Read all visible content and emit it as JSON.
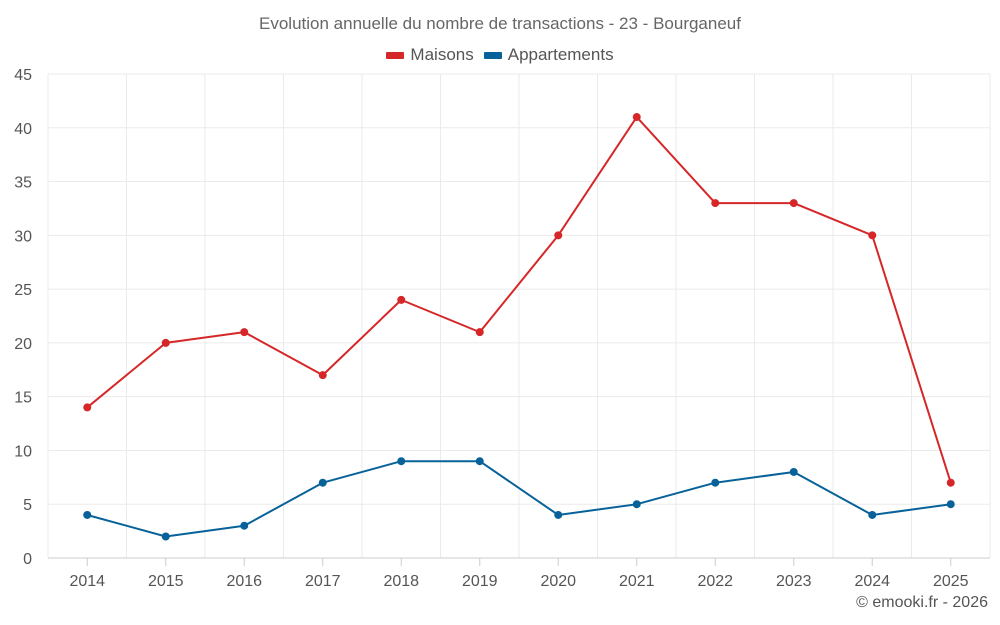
{
  "chart_data": {
    "type": "line",
    "title": "Evolution annuelle du nombre de transactions - 23 - Bourganeuf",
    "categories": [
      "2014",
      "2015",
      "2016",
      "2017",
      "2018",
      "2019",
      "2020",
      "2021",
      "2022",
      "2023",
      "2024",
      "2025"
    ],
    "series": [
      {
        "name": "Maisons",
        "color": "#d62728",
        "values": [
          14,
          20,
          21,
          17,
          24,
          21,
          30,
          41,
          33,
          33,
          30,
          7
        ]
      },
      {
        "name": "Appartements",
        "color": "#08629a",
        "values": [
          4,
          2,
          3,
          7,
          9,
          9,
          4,
          5,
          7,
          8,
          4,
          5
        ]
      }
    ],
    "y_ticks": [
      "0",
      "5",
      "10",
      "15",
      "20",
      "25",
      "30",
      "35",
      "40",
      "45"
    ],
    "ylim": [
      0,
      45
    ],
    "xlabel": "",
    "ylabel": "",
    "grid": true,
    "legend_position": "top-center"
  },
  "credit": "© emooki.fr - 2026"
}
